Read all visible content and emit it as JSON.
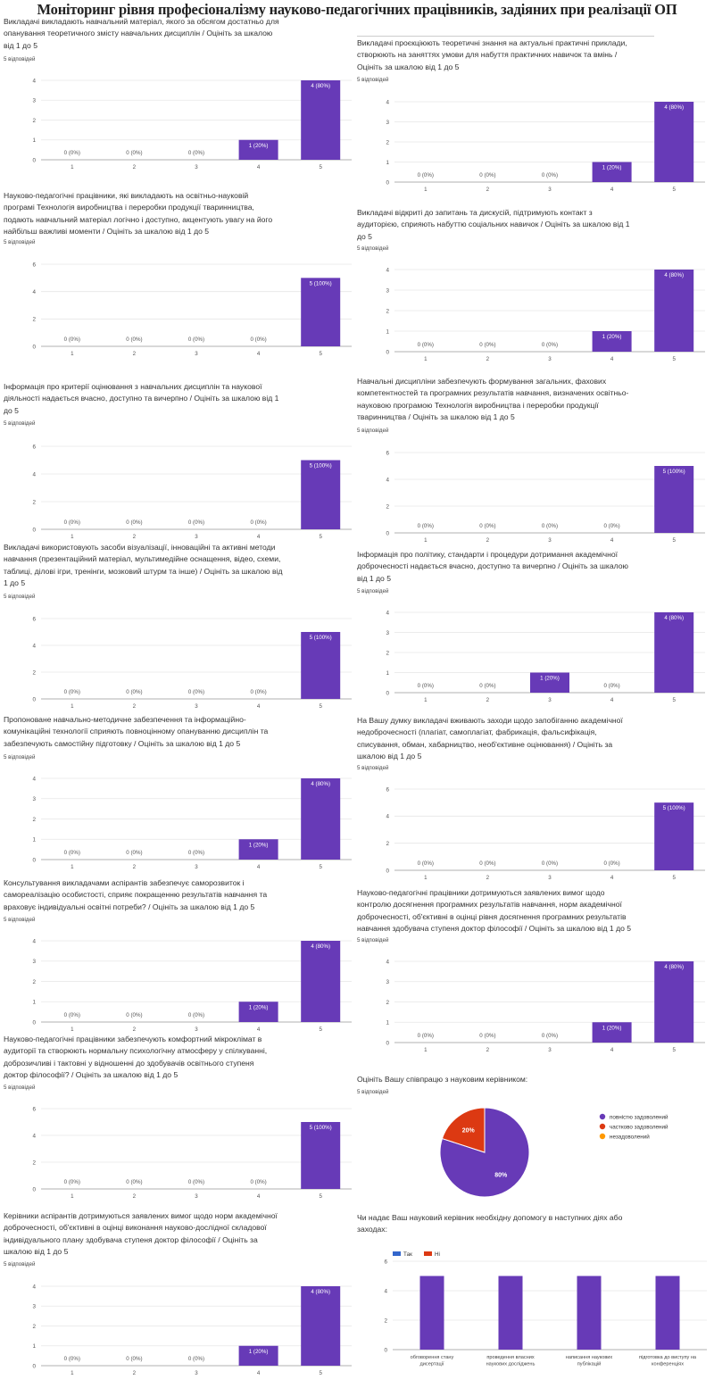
{
  "page_title": "Моніторинг рівня професіоналізму науково-педагогічних працівників, задіяних при реалізації ОП",
  "colors": {
    "bar": "#673AB7",
    "pie_full": "#673AB7",
    "pie_partial": "#DC3912",
    "pie_not": "#FF9900",
    "yes": "#3366CC",
    "no": "#DC3912",
    "grid": "#e6e6e6",
    "axis": "#999999"
  },
  "chart_data": [
    {
      "type": "bar",
      "question": [
        "Викладачі викладають навчальний матеріал, якого за обсягом достатньо для",
        "опанування теоретичного змісту навчальних дисциплін / Оцініть за шкалою",
        "від 1 до 5"
      ],
      "responses": "5 відповідей",
      "categories": [
        "1",
        "2",
        "3",
        "4",
        "5"
      ],
      "values": [
        0,
        0,
        0,
        1,
        4
      ],
      "labels": [
        "0 (0%)",
        "0 (0%)",
        "0 (0%)",
        "1 (20%)",
        "4 (80%)"
      ],
      "yticks": [
        "0",
        "1",
        "2",
        "3",
        "4"
      ],
      "ylim": [
        0,
        4
      ]
    },
    {
      "type": "bar",
      "question": [
        "Викладачі проєкціюють теоретичні знання на актуальні практичні приклади,",
        "створюють на заняттях умови для набуття практичних навичок та вмінь /",
        "Оцініть за шкалою від 1 до 5"
      ],
      "responses": "5 відповідей",
      "categories": [
        "1",
        "2",
        "3",
        "4",
        "5"
      ],
      "values": [
        0,
        0,
        0,
        1,
        4
      ],
      "labels": [
        "0 (0%)",
        "0 (0%)",
        "0 (0%)",
        "1 (20%)",
        "4 (80%)"
      ],
      "yticks": [
        "0",
        "1",
        "2",
        "3",
        "4"
      ],
      "ylim": [
        0,
        4
      ]
    },
    {
      "type": "bar",
      "question": [
        "Науково-педагогічні працівники, які викладають на освітньо-науковій",
        "програмі Технологія виробництва і переробки продукції тваринництва,",
        "подають навчальний матеріал логічно і доступно, акцентують увагу на його",
        "найбільш важливі моменти / Оцініть за шкалою від 1 до 5"
      ],
      "responses": "5 відповідей",
      "categories": [
        "1",
        "2",
        "3",
        "4",
        "5"
      ],
      "values": [
        0,
        0,
        0,
        0,
        5
      ],
      "labels": [
        "0 (0%)",
        "0 (0%)",
        "0 (0%)",
        "0 (0%)",
        "5 (100%)"
      ],
      "yticks": [
        "0",
        "2",
        "4",
        "6"
      ],
      "ylim": [
        0,
        6
      ]
    },
    {
      "type": "bar",
      "question": [
        "Викладачі відкриті до запитань та дискусій, підтримують контакт з",
        "аудиторією, сприяють набуттю соціальних навичок / Оцініть за шкалою від 1",
        "до 5"
      ],
      "responses": "5 відповідей",
      "categories": [
        "1",
        "2",
        "3",
        "4",
        "5"
      ],
      "values": [
        0,
        0,
        0,
        1,
        4
      ],
      "labels": [
        "0 (0%)",
        "0 (0%)",
        "0 (0%)",
        "1 (20%)",
        "4 (80%)"
      ],
      "yticks": [
        "0",
        "1",
        "2",
        "3",
        "4"
      ],
      "ylim": [
        0,
        4
      ]
    },
    {
      "type": "bar",
      "question": [
        "Інформація про критерії оцінювання з навчальних дисциплін та наукової",
        "діяльності надається вчасно, доступно та вичерпно / Оцініть за шкалою від 1",
        "до 5"
      ],
      "responses": "5 відповідей",
      "categories": [
        "1",
        "2",
        "3",
        "4",
        "5"
      ],
      "values": [
        0,
        0,
        0,
        0,
        5
      ],
      "labels": [
        "0 (0%)",
        "0 (0%)",
        "0 (0%)",
        "0 (0%)",
        "5 (100%)"
      ],
      "yticks": [
        "0",
        "2",
        "4",
        "6"
      ],
      "ylim": [
        0,
        6
      ]
    },
    {
      "type": "bar",
      "question": [
        "Навчальні дисципліни забезпечують формування загальних, фахових",
        "компетентностей та програмних результатів навчання, визначених освітньо-",
        "науковою програмою Технологія виробництва і переробки продукції",
        "тваринництва / Оцініть за шкалою від 1 до 5"
      ],
      "responses": "5 відповідей",
      "categories": [
        "1",
        "2",
        "3",
        "4",
        "5"
      ],
      "values": [
        0,
        0,
        0,
        0,
        5
      ],
      "labels": [
        "0 (0%)",
        "0 (0%)",
        "0 (0%)",
        "0 (0%)",
        "5 (100%)"
      ],
      "yticks": [
        "0",
        "2",
        "4",
        "6"
      ],
      "ylim": [
        0,
        6
      ]
    },
    {
      "type": "bar",
      "question": [
        "Викладачі використовують засоби візуалізації, інноваційні та активні методи",
        "навчання (презентаційний матеріал, мультимедійне оснащення, відео, схеми,",
        "таблиці, ділові ігри, тренінги, мозковий штурм та інше) / Оцініть за шкалою від",
        "1 до 5"
      ],
      "responses": "5 відповідей",
      "categories": [
        "1",
        "2",
        "3",
        "4",
        "5"
      ],
      "values": [
        0,
        0,
        0,
        0,
        5
      ],
      "labels": [
        "0 (0%)",
        "0 (0%)",
        "0 (0%)",
        "0 (0%)",
        "5 (100%)"
      ],
      "yticks": [
        "0",
        "2",
        "4",
        "6"
      ],
      "ylim": [
        0,
        6
      ]
    },
    {
      "type": "bar",
      "question": [
        "Інформація про політику, стандарти і процедури дотримання академічної",
        "доброчесності надається вчасно, доступно та вичерпно / Оцініть за шкалою",
        "від 1 до 5"
      ],
      "responses": "5 відповідей",
      "categories": [
        "1",
        "2",
        "3",
        "4",
        "5"
      ],
      "values": [
        0,
        0,
        1,
        0,
        4
      ],
      "labels": [
        "0 (0%)",
        "0 (0%)",
        "1 (20%)",
        "0 (0%)",
        "4 (80%)"
      ],
      "yticks": [
        "0",
        "1",
        "2",
        "3",
        "4"
      ],
      "ylim": [
        0,
        4
      ]
    },
    {
      "type": "bar",
      "question": [
        "Пропоноване навчально-методичне забезпечення та інформаційно-",
        "комунікаційні технології сприяють повноцінному опануванню дисциплін та",
        "забезпечують самостійну підготовку / Оцініть за шкалою від 1 до 5"
      ],
      "responses": "5 відповідей",
      "categories": [
        "1",
        "2",
        "3",
        "4",
        "5"
      ],
      "values": [
        0,
        0,
        0,
        1,
        4
      ],
      "labels": [
        "0 (0%)",
        "0 (0%)",
        "0 (0%)",
        "1 (20%)",
        "4 (80%)"
      ],
      "yticks": [
        "0",
        "1",
        "2",
        "3",
        "4"
      ],
      "ylim": [
        0,
        4
      ]
    },
    {
      "type": "bar",
      "question": [
        "На Вашу думку викладачі вживають заходи щодо запобіганню академічної",
        "недоброчесності (плагіат, самоплагіат, фабрикація, фальсифікація,",
        "списування, обман, хабарництво, необ'єктивне оцінювання) / Оцініть за",
        "шкалою від 1 до 5"
      ],
      "responses": "5 відповідей",
      "categories": [
        "1",
        "2",
        "3",
        "4",
        "5"
      ],
      "values": [
        0,
        0,
        0,
        0,
        5
      ],
      "labels": [
        "0 (0%)",
        "0 (0%)",
        "0 (0%)",
        "0 (0%)",
        "5 (100%)"
      ],
      "yticks": [
        "0",
        "2",
        "4",
        "6"
      ],
      "ylim": [
        0,
        6
      ]
    },
    {
      "type": "bar",
      "question": [
        "Консультування викладачами аспірантів забезпечує саморозвиток і",
        "самореалізацію особистості, сприяє покращенню результатів навчання та",
        "враховує індивідуальні освітні потреби? / Оцініть за шкалою від 1 до 5"
      ],
      "responses": "5 відповідей",
      "categories": [
        "1",
        "2",
        "3",
        "4",
        "5"
      ],
      "values": [
        0,
        0,
        0,
        1,
        4
      ],
      "labels": [
        "0 (0%)",
        "0 (0%)",
        "0 (0%)",
        "1 (20%)",
        "4 (80%)"
      ],
      "yticks": [
        "0",
        "1",
        "2",
        "3",
        "4"
      ],
      "ylim": [
        0,
        4
      ]
    },
    {
      "type": "bar",
      "question": [
        "Науково-педагогічні працівники дотримуються заявлених вимог щодо",
        "контролю досягнення програмних результатів навчання, норм академічної",
        "доброчесності, об'єктивні в оцінці рівня досягнення програмних результатів",
        "навчання здобувача ступеня доктор філософії / Оцініть за шкалою від 1 до 5"
      ],
      "responses": "5 відповідей",
      "categories": [
        "1",
        "2",
        "3",
        "4",
        "5"
      ],
      "values": [
        0,
        0,
        0,
        1,
        4
      ],
      "labels": [
        "0 (0%)",
        "0 (0%)",
        "0 (0%)",
        "1 (20%)",
        "4 (80%)"
      ],
      "yticks": [
        "0",
        "1",
        "2",
        "3",
        "4"
      ],
      "ylim": [
        0,
        4
      ]
    },
    {
      "type": "bar",
      "question": [
        "Науково-педагогічні працівники забезпечують комфортний мікроклімат в",
        "аудиторії та створюють нормальну психологічну атмосферу у спілкуванні,",
        "доброзичливі і тактовні у відношенні до здобувачів освітнього ступеня",
        "доктор філософії? / Оцініть за шкалою від 1 до 5"
      ],
      "responses": "5 відповідей",
      "categories": [
        "1",
        "2",
        "3",
        "4",
        "5"
      ],
      "values": [
        0,
        0,
        0,
        0,
        5
      ],
      "labels": [
        "0 (0%)",
        "0 (0%)",
        "0 (0%)",
        "0 (0%)",
        "5 (100%)"
      ],
      "yticks": [
        "0",
        "2",
        "4",
        "6"
      ],
      "ylim": [
        0,
        6
      ]
    },
    {
      "type": "pie",
      "question": [
        "Оцініть Вашу співпрацю з науковим керівником:"
      ],
      "responses": "5 відповідей",
      "slices": [
        {
          "name": "повністю задоволений",
          "value": 80,
          "label": "80%"
        },
        {
          "name": "частково задоволений",
          "value": 20,
          "label": "20%"
        },
        {
          "name": "незадоволений",
          "value": 0,
          "label": ""
        }
      ]
    },
    {
      "type": "bar",
      "question": [
        "Керівники аспірантів дотримуються заявлених вимог щодо норм академічної",
        "доброчесності, об'єктивні в оцінці виконання науково-дослідної складової",
        "індивідуального плану здобувача ступеня доктор філософії / Оцініть за",
        "шкалою від 1 до 5"
      ],
      "responses": "5 відповідей",
      "categories": [
        "1",
        "2",
        "3",
        "4",
        "5"
      ],
      "values": [
        0,
        0,
        0,
        1,
        4
      ],
      "labels": [
        "0 (0%)",
        "0 (0%)",
        "0 (0%)",
        "1 (20%)",
        "4 (80%)"
      ],
      "yticks": [
        "0",
        "1",
        "2",
        "3",
        "4"
      ],
      "ylim": [
        0,
        4
      ]
    },
    {
      "type": "bar",
      "question": [
        "Чи надає Ваш науковий керівник необхідну допомогу в наступних діях або",
        "заходах:"
      ],
      "responses": "",
      "legend": [
        "Так",
        "Ні"
      ],
      "categories": [
        [
          "обговорення стану",
          "дисертації"
        ],
        [
          "проведення власних",
          "наукових досліджень"
        ],
        [
          "написання наукових",
          "публікацій"
        ],
        [
          "підготовка до виступу на",
          "конференціях"
        ]
      ],
      "series": [
        {
          "name": "Так",
          "values": [
            5,
            5,
            5,
            5
          ]
        },
        {
          "name": "Ні",
          "values": [
            0,
            0,
            0,
            0
          ]
        }
      ],
      "yticks": [
        "0",
        "2",
        "4",
        "6"
      ],
      "ylim": [
        0,
        6
      ]
    }
  ]
}
